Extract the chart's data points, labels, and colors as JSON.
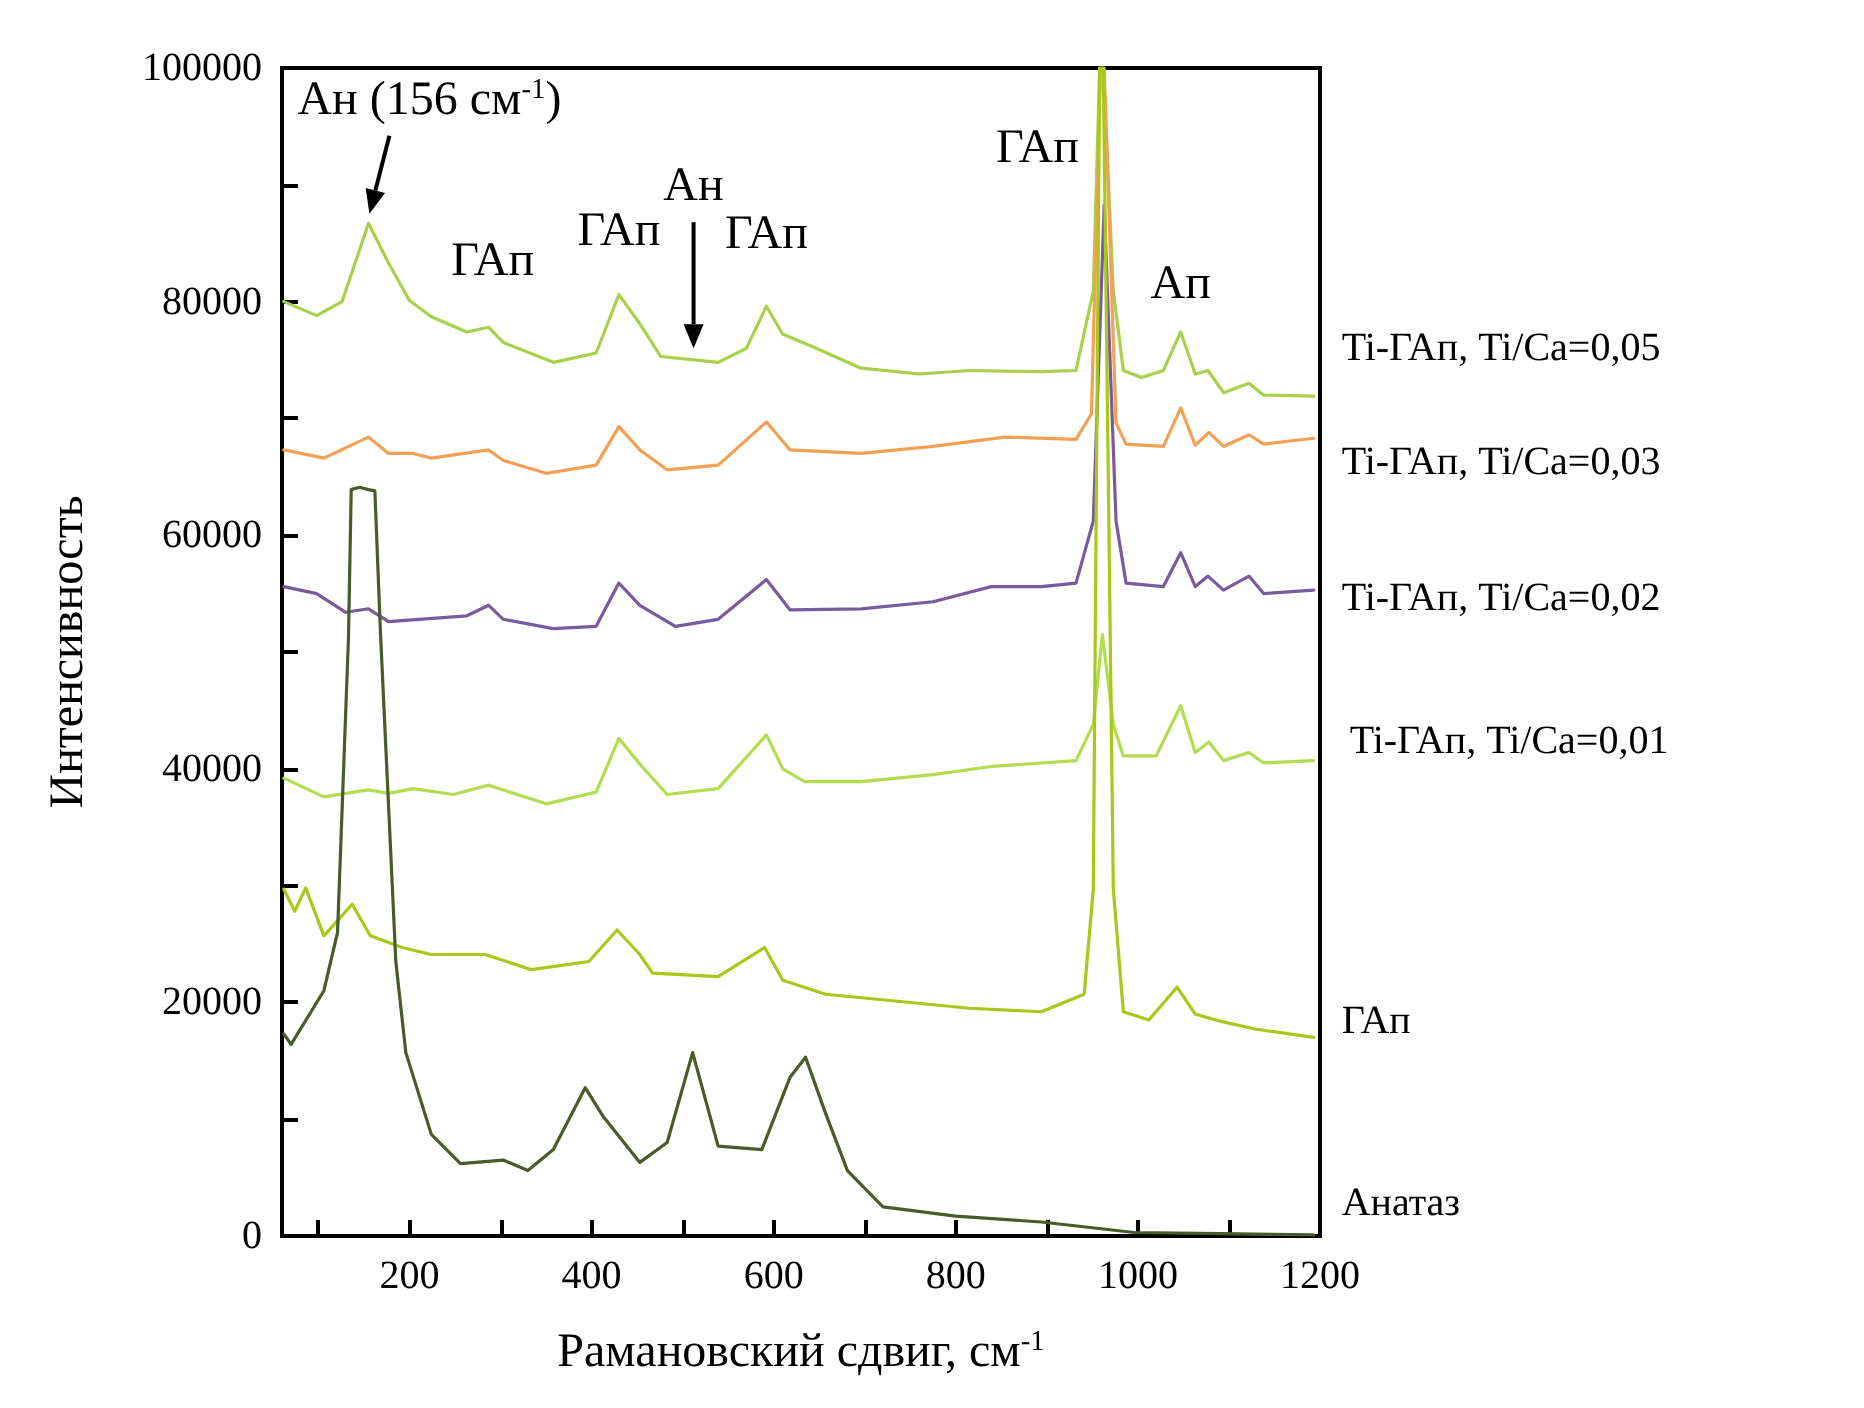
{
  "chart_data": {
    "type": "line",
    "xlabel": "Рамановский сдвиг, см$^{-1}$",
    "ylabel": "Интенсивность",
    "xlim": [
      60,
      1200
    ],
    "xticks": [
      {
        "value": 100,
        "label": null
      },
      200,
      {
        "value": 300,
        "label": null
      },
      400,
      {
        "value": 500,
        "label": null
      },
      600,
      {
        "value": 700,
        "label": null
      },
      800,
      {
        "value": 900,
        "label": null
      },
      1000,
      {
        "value": 1100,
        "label": null
      },
      1200
    ],
    "ylim": [
      0,
      100000
    ],
    "yticks": [
      0,
      {
        "value": 10000,
        "label": null
      },
      20000,
      {
        "value": 30000,
        "label": null
      },
      40000,
      {
        "value": 50000,
        "label": null
      },
      60000,
      {
        "value": 70000,
        "label": null
      },
      80000,
      {
        "value": 90000,
        "label": null
      },
      100000
    ],
    "grid": false,
    "legend": false,
    "marker": "none",
    "line_style": "solid",
    "series": [
      {
        "name": "Ti-ГАп, Ti/Ca=0,05",
        "color": "#a8d04a",
        "x": [
          62,
          98,
          126,
          155,
          177,
          200,
          224,
          263,
          287,
          303,
          358,
          405,
          430,
          453,
          476,
          539,
          570,
          592,
          610,
          641,
          696,
          760,
          815,
          894,
          932,
          951,
          958,
          962,
          973,
          984,
          1004,
          1028,
          1047,
          1063,
          1077,
          1094,
          1122,
          1138,
          1193
        ],
        "values": [
          80000,
          78800,
          80000,
          86700,
          83300,
          80100,
          78700,
          77400,
          77800,
          76500,
          74800,
          75600,
          80600,
          78100,
          75300,
          74800,
          76000,
          79600,
          77200,
          76200,
          74300,
          73800,
          74100,
          74000,
          74100,
          80900,
          100000,
          100000,
          80900,
          74100,
          73500,
          74100,
          77400,
          73800,
          74100,
          72200,
          73000,
          72000,
          71900
        ]
      },
      {
        "name": "Ti-ГАп, Ti/Ca=0,03",
        "color": "#f4a054",
        "x": [
          62,
          106,
          155,
          177,
          204,
          224,
          287,
          303,
          350,
          405,
          430,
          453,
          483,
          539,
          592,
          618,
          696,
          775,
          854,
          932,
          949,
          959,
          963,
          976,
          987,
          1028,
          1047,
          1063,
          1078,
          1094,
          1122,
          1138,
          1193
        ],
        "values": [
          67300,
          66600,
          68400,
          67000,
          67000,
          66600,
          67300,
          66400,
          65300,
          66000,
          69300,
          67300,
          65600,
          66000,
          69700,
          67300,
          67000,
          67600,
          68400,
          68200,
          70400,
          100000,
          100000,
          69600,
          67800,
          67600,
          70900,
          67700,
          68800,
          67600,
          68600,
          67800,
          68300
        ]
      },
      {
        "name": "Ti-ГАп, Ti/Ca=0,02",
        "color": "#7a5a9e",
        "x": [
          62,
          98,
          130,
          155,
          177,
          263,
          287,
          303,
          358,
          405,
          430,
          453,
          492,
          539,
          592,
          618,
          696,
          775,
          839,
          894,
          932,
          951,
          963,
          976,
          987,
          1028,
          1047,
          1063,
          1077,
          1094,
          1122,
          1138,
          1193
        ],
        "values": [
          55600,
          55000,
          53400,
          53700,
          52600,
          53100,
          54000,
          52800,
          52000,
          52200,
          55900,
          54000,
          52200,
          52800,
          56200,
          53600,
          53700,
          54300,
          55600,
          55600,
          55900,
          61200,
          88300,
          61200,
          55900,
          55600,
          58500,
          55600,
          56500,
          55300,
          56500,
          55000,
          55300
        ]
      },
      {
        "name": "Ti-ГАп, Ti/Ca=0,01",
        "color": "#b4dc50",
        "x": [
          62,
          106,
          155,
          177,
          204,
          248,
          287,
          350,
          405,
          430,
          453,
          483,
          539,
          592,
          610,
          634,
          696,
          775,
          839,
          932,
          951,
          961,
          973,
          984,
          1020,
          1047,
          1063,
          1078,
          1094,
          1122,
          1138,
          1193
        ],
        "values": [
          39200,
          37600,
          38200,
          37900,
          38300,
          37800,
          38600,
          37000,
          38000,
          42600,
          40400,
          37800,
          38300,
          42900,
          40000,
          38900,
          38900,
          39500,
          40200,
          40700,
          43800,
          51500,
          43800,
          41100,
          41100,
          45400,
          41400,
          42300,
          40700,
          41400,
          40500,
          40700
        ]
      },
      {
        "name": "ГАп",
        "color": "#a8c81a",
        "x": [
          62,
          74,
          86,
          106,
          137,
          157,
          192,
          224,
          283,
          334,
          397,
          428,
          453,
          467,
          539,
          590,
          610,
          657,
          736,
          815,
          894,
          941,
          951,
          958,
          962,
          973,
          984,
          1012,
          1043,
          1063,
          1090,
          1130,
          1193
        ],
        "values": [
          29700,
          27800,
          29800,
          25700,
          28400,
          25700,
          24700,
          24100,
          24100,
          22800,
          23500,
          26200,
          24100,
          22500,
          22200,
          24700,
          21900,
          20700,
          20100,
          19500,
          19200,
          20700,
          29700,
          100000,
          100000,
          29700,
          19200,
          18500,
          21300,
          19000,
          18400,
          17700,
          17000
        ]
      },
      {
        "name": "Анатаз",
        "color": "#4a5a28",
        "x": [
          62,
          70,
          106,
          121,
          133,
          136,
          145,
          155,
          162,
          168,
          185,
          196,
          224,
          256,
          303,
          330,
          358,
          393,
          413,
          453,
          483,
          511,
          539,
          587,
          618,
          635,
          657,
          681,
          720,
          800,
          894,
          996,
          1090,
          1193
        ],
        "values": [
          17300,
          16400,
          21000,
          26000,
          51200,
          63900,
          64100,
          63900,
          63800,
          51900,
          23500,
          15700,
          8700,
          6200,
          6500,
          5600,
          7400,
          12700,
          10200,
          6300,
          8000,
          15700,
          7700,
          7400,
          13600,
          15300,
          10500,
          5600,
          2500,
          1700,
          1200,
          300,
          200,
          100
        ]
      }
    ],
    "annotations": [
      {
        "text": "Ан (156 см$^{-1}$)",
        "x": 156,
        "y": 87000
      },
      {
        "text": "ГАп",
        "x": 287,
        "y": 78000
      },
      {
        "text": "ГАп",
        "x": 430,
        "y": 80600
      },
      {
        "text": "Ан",
        "x": 512,
        "y": 75500
      },
      {
        "text": "ГАп",
        "x": 592,
        "y": 79600
      },
      {
        "text": "ГАп",
        "x": 960,
        "y": 100000
      },
      {
        "text": "Ап",
        "x": 1047,
        "y": 77400
      }
    ]
  }
}
